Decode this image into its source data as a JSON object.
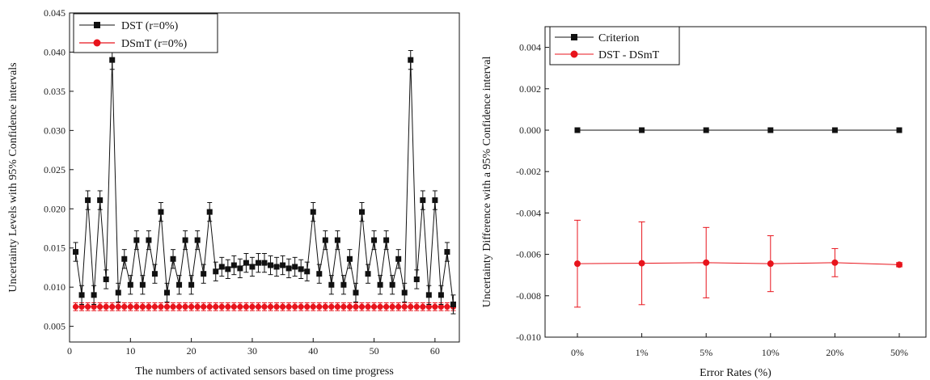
{
  "chart_data": [
    {
      "type": "line",
      "xlabel": "The numbers of activated sensors based on time progress",
      "ylabel": "Uncertainty Levels with 95% Confidence intervals",
      "xlim": [
        0,
        64
      ],
      "ylim": [
        0.003,
        0.045
      ],
      "xticks": [
        0,
        10,
        20,
        30,
        40,
        50,
        60
      ],
      "yticks": [
        0.005,
        0.01,
        0.015,
        0.02,
        0.025,
        0.03,
        0.035,
        0.04,
        0.045
      ],
      "ytick_labels": [
        "0.005",
        "0.010",
        "0.015",
        "0.020",
        "0.025",
        "0.030",
        "0.035",
        "0.040",
        "0.045"
      ],
      "xtick_labels": [
        "0",
        "10",
        "20",
        "30",
        "40",
        "50",
        "60"
      ],
      "legend_position": "top-left",
      "series": [
        {
          "name": "DST (r=0%)",
          "color": "#111111",
          "marker": "square",
          "x": [
            1,
            2,
            3,
            4,
            5,
            6,
            7,
            8,
            9,
            10,
            11,
            12,
            13,
            14,
            15,
            16,
            17,
            18,
            19,
            20,
            21,
            22,
            23,
            24,
            25,
            26,
            27,
            28,
            29,
            30,
            31,
            32,
            33,
            34,
            35,
            36,
            37,
            38,
            39,
            40,
            41,
            42,
            43,
            44,
            45,
            46,
            47,
            48,
            49,
            50,
            51,
            52,
            53,
            54,
            55,
            56,
            57,
            58,
            59,
            60,
            61,
            62,
            63
          ],
          "y": [
            0.0145,
            0.009,
            0.0211,
            0.009,
            0.0211,
            0.011,
            0.039,
            0.0093,
            0.0136,
            0.0103,
            0.016,
            0.0103,
            0.016,
            0.0117,
            0.0196,
            0.0093,
            0.0136,
            0.0103,
            0.016,
            0.0103,
            0.016,
            0.0117,
            0.0196,
            0.012,
            0.0126,
            0.0123,
            0.0128,
            0.0124,
            0.0131,
            0.0126,
            0.0131,
            0.0131,
            0.0128,
            0.0126,
            0.0128,
            0.0124,
            0.0126,
            0.0123,
            0.012,
            0.0196,
            0.0117,
            0.016,
            0.0103,
            0.016,
            0.0103,
            0.0136,
            0.0093,
            0.0196,
            0.0117,
            0.016,
            0.0103,
            0.016,
            0.0103,
            0.0136,
            0.0093,
            0.039,
            0.011,
            0.0211,
            0.009,
            0.0211,
            0.009,
            0.0145,
            0.0078
          ],
          "error": 0.0012
        },
        {
          "name": "DSmT (r=0%)",
          "color": "#e8141c",
          "marker": "circle",
          "x": [
            1,
            2,
            3,
            4,
            5,
            6,
            7,
            8,
            9,
            10,
            11,
            12,
            13,
            14,
            15,
            16,
            17,
            18,
            19,
            20,
            21,
            22,
            23,
            24,
            25,
            26,
            27,
            28,
            29,
            30,
            31,
            32,
            33,
            34,
            35,
            36,
            37,
            38,
            39,
            40,
            41,
            42,
            43,
            44,
            45,
            46,
            47,
            48,
            49,
            50,
            51,
            52,
            53,
            54,
            55,
            56,
            57,
            58,
            59,
            60,
            61,
            62,
            63
          ],
          "y_constant": 0.0075,
          "error": 0.0005
        }
      ]
    },
    {
      "type": "line",
      "xlabel": "Error Rates (%)",
      "ylabel": "Uncertainty Difference with a 95% Confidence interval",
      "categories": [
        "0%",
        "1%",
        "5%",
        "10%",
        "20%",
        "50%"
      ],
      "ylim": [
        -0.01,
        0.005
      ],
      "yticks": [
        -0.01,
        -0.008,
        -0.006,
        -0.004,
        -0.002,
        0.0,
        0.002,
        0.004
      ],
      "ytick_labels": [
        "-0.010",
        "-0.008",
        "-0.006",
        "-0.004",
        "-0.002",
        "0.000",
        "0.002",
        "0.004"
      ],
      "legend_position": "top-left",
      "series": [
        {
          "name": "Criterion",
          "color": "#111111",
          "marker": "square",
          "values": [
            0,
            0,
            0,
            0,
            0,
            0
          ]
        },
        {
          "name": "DST - DSmT",
          "color": "#e8141c",
          "marker": "circle",
          "values": [
            -0.00645,
            -0.00643,
            -0.0064,
            -0.00645,
            -0.0064,
            -0.0065
          ],
          "error": [
            0.0021,
            0.002,
            0.0017,
            0.00135,
            0.00068,
            0.0001
          ]
        }
      ]
    }
  ]
}
